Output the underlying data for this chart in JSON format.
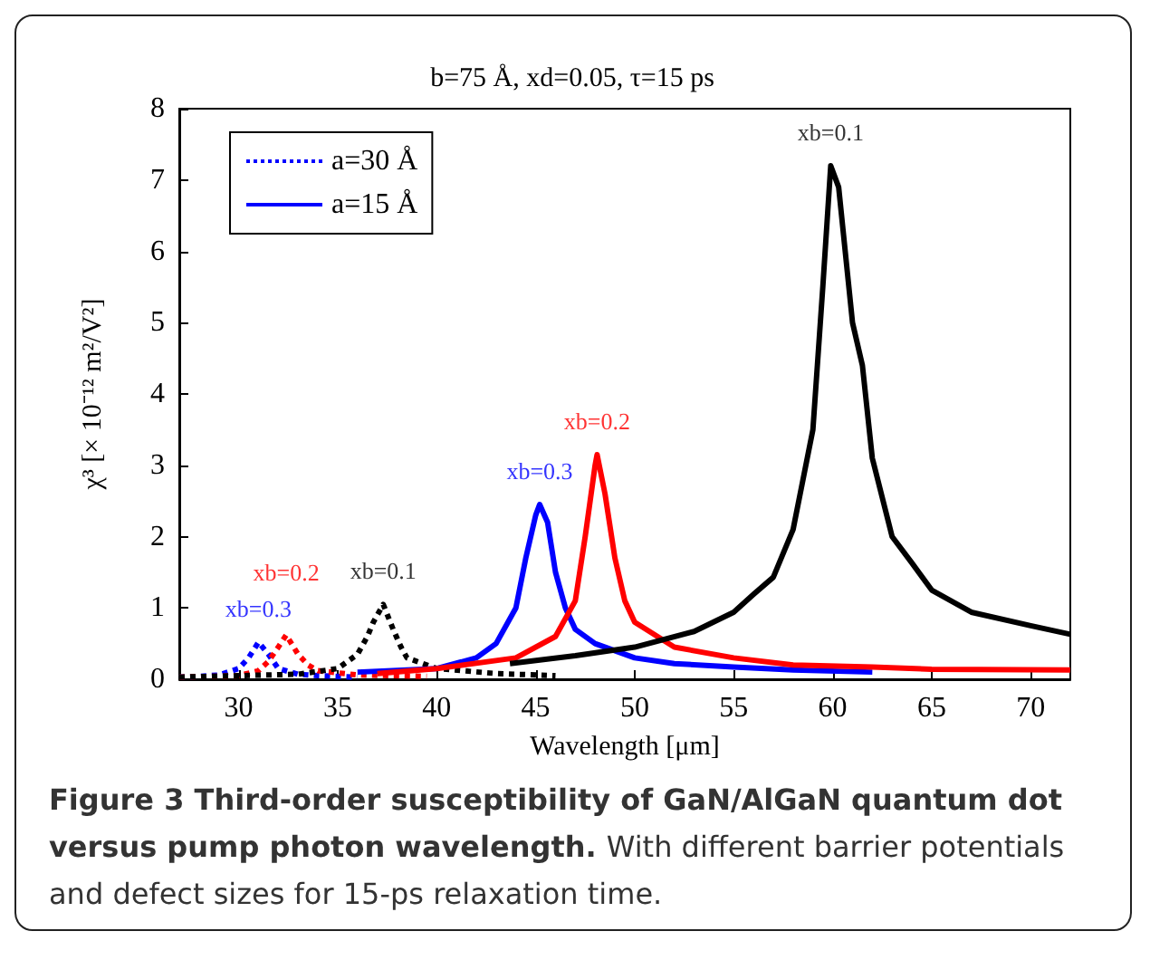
{
  "chart_data": {
    "type": "line",
    "title": "b=75 Å, xd=0.05, τ=15 ps",
    "xlabel": "Wavelength [μm]",
    "ylabel": "χ³ [× 10⁻¹² m²/V²]",
    "xlim": [
      27,
      72
    ],
    "xticks": [
      30,
      35,
      40,
      45,
      50,
      55,
      60,
      65,
      70
    ],
    "ylim": [
      0,
      8
    ],
    "yticks": [
      0,
      1,
      2,
      3,
      4,
      5,
      6,
      7,
      8
    ],
    "grid": false,
    "legend": "top left",
    "marker": "none",
    "series": [
      {
        "name": "a=30 Å",
        "color": "#0000ff",
        "line_style": "dotted",
        "x": [
          27,
          28,
          29,
          30,
          30.5,
          31,
          31.5,
          32,
          33,
          34,
          36
        ],
        "values": [
          0.03,
          0.04,
          0.06,
          0.15,
          0.3,
          0.52,
          0.35,
          0.15,
          0.07,
          0.05,
          0.03
        ]
      },
      {
        "color": "#ff0000",
        "line_style": "dotted",
        "x": [
          27,
          30,
          31,
          31.5,
          32,
          32.4,
          33,
          33.5,
          34,
          36,
          39.5
        ],
        "values": [
          0.03,
          0.05,
          0.12,
          0.25,
          0.45,
          0.62,
          0.35,
          0.2,
          0.12,
          0.06,
          0.04
        ]
      },
      {
        "color": "#000000",
        "line_style": "dotted",
        "x": [
          27,
          33,
          35,
          36,
          36.5,
          36.8,
          37.3,
          37.8,
          38.2,
          38.5,
          40,
          43,
          46
        ],
        "values": [
          0.03,
          0.07,
          0.15,
          0.35,
          0.6,
          0.8,
          1.05,
          0.7,
          0.45,
          0.3,
          0.15,
          0.08,
          0.05
        ]
      },
      {
        "name": "a=15 Å",
        "color": "#0000ff",
        "line_style": "solid",
        "x": [
          36,
          40,
          42,
          43,
          44,
          44.5,
          45,
          45.2,
          45.6,
          46,
          46.5,
          47,
          48,
          50,
          52,
          55,
          58,
          62
        ],
        "values": [
          0.1,
          0.15,
          0.3,
          0.5,
          1.0,
          1.7,
          2.3,
          2.45,
          2.2,
          1.5,
          1.0,
          0.7,
          0.5,
          0.3,
          0.22,
          0.17,
          0.13,
          0.1
        ]
      },
      {
        "color": "#ff0000",
        "line_style": "solid",
        "x": [
          37,
          40,
          44,
          46,
          47,
          47.5,
          48,
          48.1,
          48.5,
          49,
          49.5,
          50,
          52,
          55,
          58,
          62,
          65,
          72
        ],
        "values": [
          0.08,
          0.15,
          0.3,
          0.6,
          1.1,
          2.0,
          3.0,
          3.15,
          2.6,
          1.7,
          1.1,
          0.8,
          0.45,
          0.3,
          0.2,
          0.17,
          0.14,
          0.13
        ]
      },
      {
        "color": "#000000",
        "line_style": "solid",
        "x": [
          43.7,
          47,
          50,
          53,
          55,
          56,
          57,
          58,
          59,
          59.5,
          59.9,
          60.3,
          61,
          61.5,
          62,
          63,
          64,
          65,
          67,
          70,
          72
        ],
        "values": [
          0.22,
          0.33,
          0.45,
          0.67,
          0.94,
          1.19,
          1.43,
          2.1,
          3.5,
          5.5,
          7.2,
          6.9,
          5.0,
          4.4,
          3.1,
          2.0,
          1.63,
          1.25,
          0.94,
          0.75,
          0.63
        ]
      }
    ],
    "annotations": [
      {
        "text": "xb=0.3",
        "x": 31,
        "y": 0.52
      },
      {
        "text": "xb=0.2",
        "x": 32.4,
        "y": 0.62
      },
      {
        "text": "xb=0.1",
        "x": 37.3,
        "y": 1.05
      },
      {
        "text": "xb=0.3",
        "x": 45.2,
        "y": 2.45
      },
      {
        "text": "xb=0.2",
        "x": 48.1,
        "y": 3.15
      },
      {
        "text": "xb=0.1",
        "x": 59.9,
        "y": 7.2
      },
      "Figure 3 Third-order susceptibility of GaN/AlGaN quantum dot versus pump photon wavelength.",
      "With different barrier potentials and defect sizes for 15-ps relaxation time."
    ]
  }
}
